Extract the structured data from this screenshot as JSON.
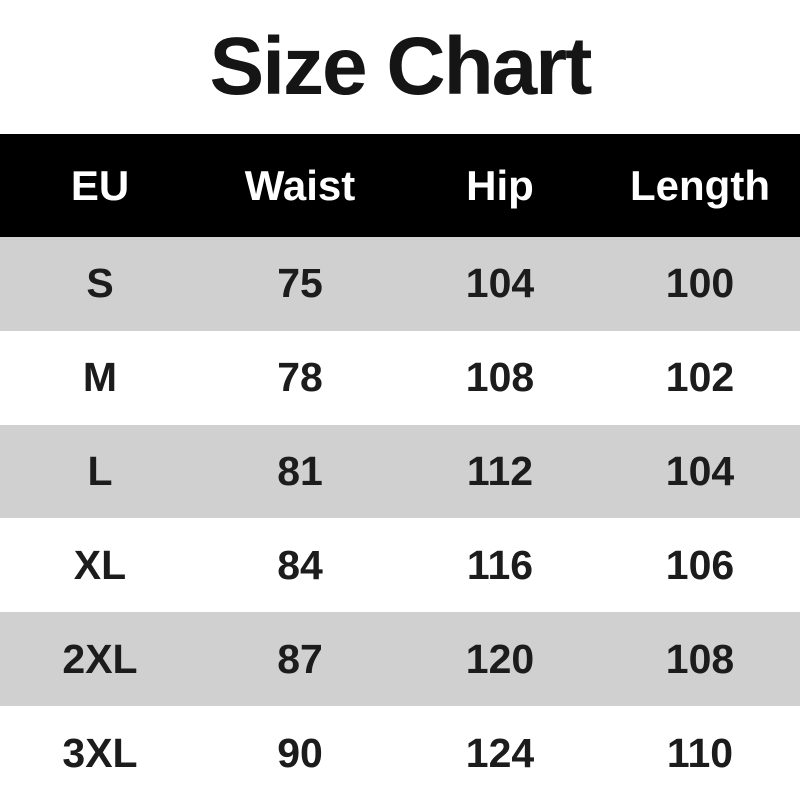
{
  "title": "Size Chart",
  "colors": {
    "header_bg": "#000000",
    "header_text": "#ffffff",
    "row_alt_bg": "#d0d0d0",
    "row_bg": "#ffffff",
    "text": "#1c1c1c"
  },
  "table": {
    "columns": [
      "EU",
      "Waist",
      "Hip",
      "Length"
    ],
    "rows": [
      {
        "size": "S",
        "waist": "75",
        "hip": "104",
        "length": "100"
      },
      {
        "size": "M",
        "waist": "78",
        "hip": "108",
        "length": "102"
      },
      {
        "size": "L",
        "waist": "81",
        "hip": "112",
        "length": "104"
      },
      {
        "size": "XL",
        "waist": "84",
        "hip": "116",
        "length": "106"
      },
      {
        "size": "2XL",
        "waist": "87",
        "hip": "120",
        "length": "108"
      },
      {
        "size": "3XL",
        "waist": "90",
        "hip": "124",
        "length": "110"
      }
    ]
  },
  "chart_data": {
    "type": "table",
    "title": "Size Chart",
    "columns": [
      "EU",
      "Waist",
      "Hip",
      "Length"
    ],
    "rows": [
      [
        "S",
        75,
        104,
        100
      ],
      [
        "M",
        78,
        108,
        102
      ],
      [
        "L",
        81,
        112,
        104
      ],
      [
        "XL",
        84,
        116,
        106
      ],
      [
        "2XL",
        87,
        120,
        108
      ],
      [
        "3XL",
        90,
        124,
        110
      ]
    ]
  }
}
